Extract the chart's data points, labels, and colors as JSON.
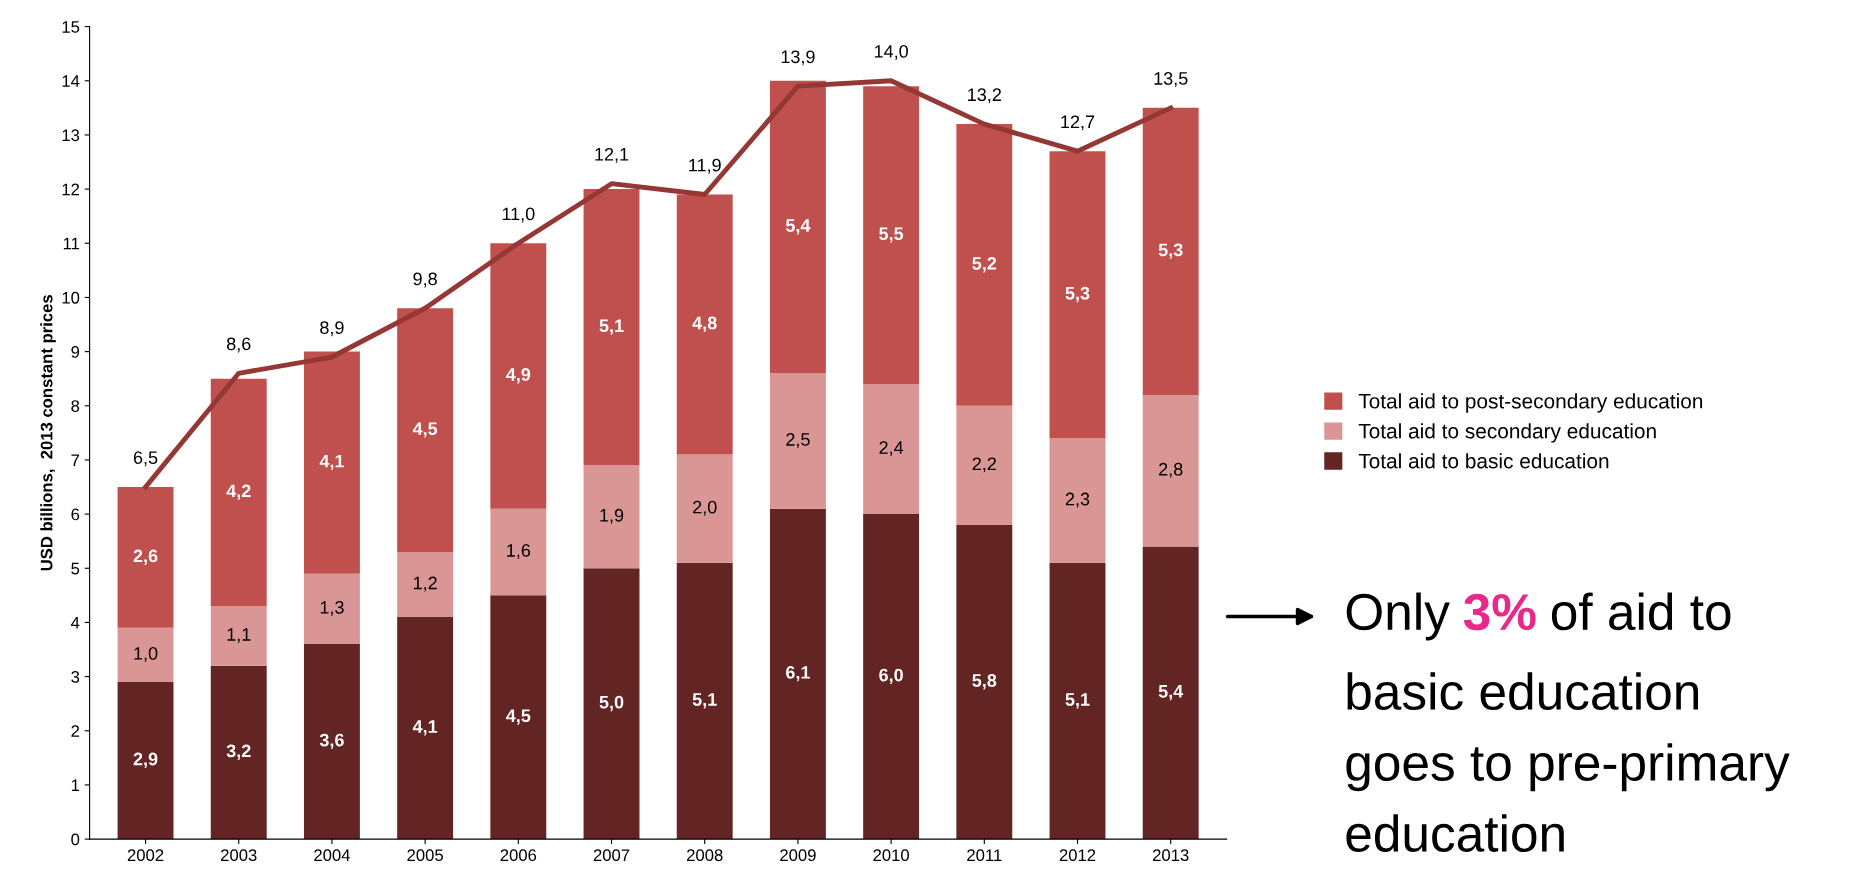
{
  "chart_data": {
    "type": "bar",
    "stacked": true,
    "ylabel": "USD billions,  2013 constant prices",
    "categories": [
      "2002",
      "2003",
      "2004",
      "2005",
      "2006",
      "2007",
      "2008",
      "2009",
      "2010",
      "2011",
      "2012",
      "2013"
    ],
    "series": [
      {
        "name": "Total aid to basic education",
        "color": "#632523",
        "values": [
          2.9,
          3.2,
          3.6,
          4.1,
          4.5,
          5.0,
          5.1,
          6.1,
          6.0,
          5.8,
          5.1,
          5.4
        ],
        "value_labels": [
          "2,9",
          "3,2",
          "3,6",
          "4,1",
          "4,5",
          "5,0",
          "5,1",
          "6,1",
          "6,0",
          "5,8",
          "5,1",
          "5,4"
        ]
      },
      {
        "name": "Total aid to secondary education",
        "color": "#d99694",
        "values": [
          1.0,
          1.1,
          1.3,
          1.2,
          1.6,
          1.9,
          2.0,
          2.5,
          2.4,
          2.2,
          2.3,
          2.8
        ],
        "value_labels": [
          "1,0",
          "1,1",
          "1,3",
          "1,2",
          "1,6",
          "1,9",
          "2,0",
          "2,5",
          "2,4",
          "2,2",
          "2,3",
          "2,8"
        ]
      },
      {
        "name": "Total aid to post-secondary education",
        "color": "#c0504d",
        "values": [
          2.6,
          4.2,
          4.1,
          4.5,
          4.9,
          5.1,
          4.8,
          5.4,
          5.5,
          5.2,
          5.3,
          5.3
        ],
        "value_labels": [
          "2,6",
          "4,2",
          "4,1",
          "4,5",
          "4,9",
          "5,1",
          "4,8",
          "5,4",
          "5,5",
          "5,2",
          "5,3",
          "5,3"
        ]
      },
      {
        "type": "line",
        "color": "#953735",
        "values": [
          6.5,
          8.6,
          8.9,
          9.8,
          11.0,
          12.1,
          11.9,
          13.9,
          14.0,
          13.2,
          12.7,
          13.5
        ],
        "value_labels": [
          "6,5",
          "8,6",
          "8,9",
          "9,8",
          "11,0",
          "12,1",
          "11,9",
          "13,9",
          "14,0",
          "13,2",
          "12,7",
          "13,5"
        ]
      }
    ],
    "ylim": [
      0,
      15
    ],
    "yticks": [
      0,
      1,
      2,
      3,
      4,
      5,
      6,
      7,
      8,
      9,
      10,
      11,
      12,
      13,
      14,
      15
    ],
    "grid": false,
    "legend": "right",
    "annotations": [
      "Only",
      "3%",
      "of aid to",
      "basic education",
      "goes to pre-primary",
      "education"
    ]
  }
}
